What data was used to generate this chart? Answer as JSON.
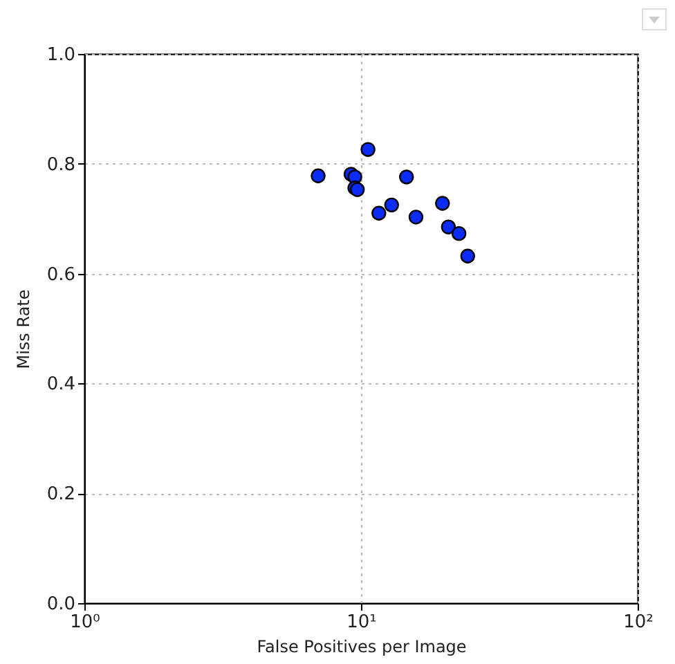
{
  "chart_data": {
    "type": "scatter",
    "xlabel": "False Positives per Image",
    "ylabel": "Miss Rate",
    "x": [
      7.0,
      9.2,
      9.5,
      10.6,
      9.5,
      9.7,
      11.6,
      12.9,
      14.6,
      15.8,
      19.7,
      20.7,
      22.6,
      24.3
    ],
    "series": [
      {
        "color": "#0a2cf5",
        "values": [
          0.778,
          0.781,
          0.776,
          0.826,
          0.756,
          0.753,
          0.71,
          0.725,
          0.776,
          0.703,
          0.728,
          0.685,
          0.673,
          0.632
        ]
      }
    ],
    "log": "x",
    "xlim": [
      1,
      100
    ],
    "xticks": [
      {
        "value": 1,
        "label": "10⁰"
      },
      {
        "value": 10,
        "label": "10¹"
      },
      {
        "value": 100,
        "label": "10²"
      }
    ],
    "ylim": [
      0,
      1
    ],
    "yticks": [
      {
        "value": 0,
        "label": "0.0"
      },
      0.2,
      0.4,
      0.6,
      0.8,
      {
        "value": 1,
        "label": "1.0"
      }
    ],
    "grid": true,
    "line_style": "dotted",
    "marker": "circle",
    "legend": false
  }
}
